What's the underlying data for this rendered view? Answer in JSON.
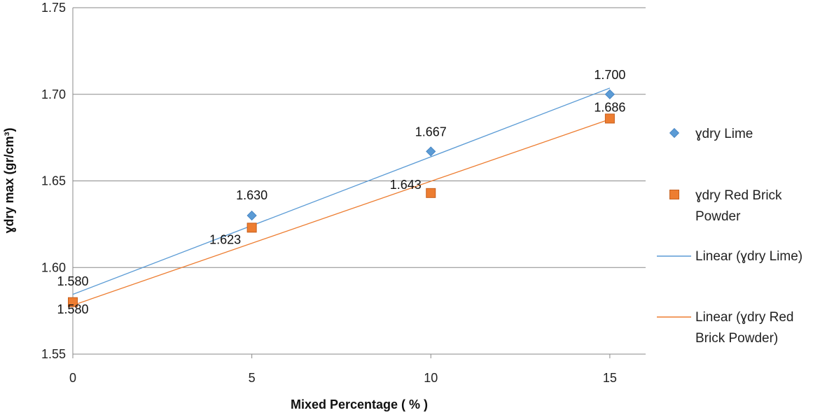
{
  "chart_data": {
    "type": "scatter",
    "title": "",
    "xlabel": "Mixed Percentage ( % )",
    "ylabel": "ɣdry max  (gr/cm³)",
    "xlim": [
      0,
      16
    ],
    "ylim": [
      1.55,
      1.75
    ],
    "x_ticks": [
      "0",
      "5",
      "10",
      "15"
    ],
    "y_ticks": [
      "1.55",
      "1.60",
      "1.65",
      "1.70",
      "1.75"
    ],
    "grid": "horizontal",
    "legend_position": "right",
    "series": [
      {
        "name": "ɣdry Lime",
        "marker": "diamond",
        "color": "#5b9bd5",
        "x": [
          0,
          5,
          10,
          15
        ],
        "y": [
          1.58,
          1.63,
          1.667,
          1.7
        ],
        "labels": [
          "1.580",
          "1.630",
          "1.667",
          "1.700"
        ]
      },
      {
        "name": "ɣdry Red Brick Powder",
        "name_lines": [
          "ɣdry Red Brick",
          "Powder"
        ],
        "marker": "square",
        "color": "#ed7d31",
        "x": [
          0,
          5,
          10,
          15
        ],
        "y": [
          1.58,
          1.623,
          1.643,
          1.686
        ],
        "labels": [
          "1.580",
          "1.623",
          "1.643",
          "1.686"
        ]
      }
    ],
    "trendlines": [
      {
        "name": "Linear (ɣdry Lime)",
        "name_lines": [
          "Linear (ɣdry Lime)"
        ],
        "color": "#5b9bd5",
        "type": "linear",
        "x": [
          0,
          15
        ],
        "y": [
          1.5845,
          1.7036
        ]
      },
      {
        "name": "Linear (ɣdry Red Brick Powder)",
        "name_lines": [
          "Linear (ɣdry Red",
          "Brick Powder)"
        ],
        "color": "#ed7d31",
        "type": "linear",
        "x": [
          0,
          15
        ],
        "y": [
          1.5782,
          1.6856
        ]
      }
    ]
  }
}
